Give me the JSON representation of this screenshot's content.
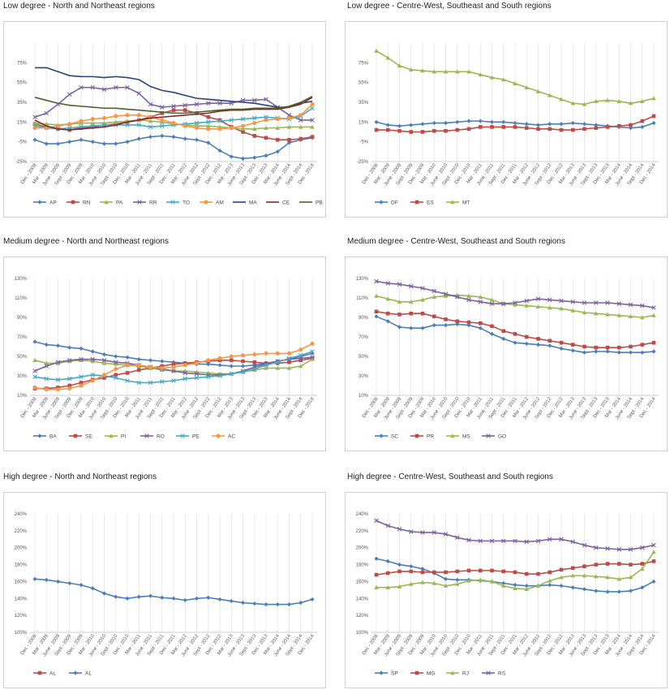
{
  "x_labels": [
    "Dec - 2008",
    "Mar - 2009",
    "June - 2009",
    "Sept - 2009",
    "Dec - 2009",
    "Mar - 2010",
    "June - 2010",
    "Sept - 2010",
    "Dec - 2010",
    "Mar - 2011",
    "June - 2011",
    "Sept - 2011",
    "Dec - 2011",
    "Mar - 2012",
    "June - 2012",
    "Sept - 2012",
    "Dec - 2012",
    "Mar - 2013",
    "June - 2013",
    "Sept - 2013",
    "Dec - 2013",
    "Mar - 2014",
    "June - 2014",
    "Sept - 2014",
    "Dec - 2014"
  ],
  "chart_data": [
    {
      "type": "line",
      "title": "Low degree - North and Northeast regions",
      "ylim": [
        -25,
        95
      ],
      "yticks": [
        "-25%",
        "-5%",
        "15%",
        "35%",
        "55%",
        "75%"
      ],
      "ytick_values": [
        -25,
        -5,
        15,
        35,
        55,
        75
      ],
      "series": [
        {
          "name": "AP",
          "color": "#4a7ebb",
          "marker": "diamond",
          "values": [
            -3,
            -7,
            -7,
            -5,
            -3,
            -5,
            -7,
            -7,
            -5,
            -2,
            0,
            1,
            0,
            -2,
            -3,
            -6,
            -14,
            -20,
            -22,
            -21,
            -19,
            -15,
            -6,
            -3,
            -1
          ]
        },
        {
          "name": "RN",
          "color": "#be4b48",
          "marker": "square",
          "values": [
            13,
            10,
            8,
            7,
            9,
            10,
            12,
            13,
            15,
            17,
            20,
            24,
            27,
            27,
            24,
            20,
            17,
            10,
            5,
            1,
            -1,
            -3,
            -3,
            -2,
            0
          ]
        },
        {
          "name": "PA",
          "color": "#98b954",
          "marker": "triangle",
          "values": [
            14,
            13,
            12,
            13,
            14,
            14,
            14,
            15,
            16,
            17,
            16,
            15,
            13,
            12,
            11,
            11,
            10,
            9,
            8,
            8,
            9,
            9,
            10,
            10,
            10
          ]
        },
        {
          "name": "RR",
          "color": "#7d60a0",
          "marker": "x",
          "values": [
            20,
            24,
            33,
            43,
            50,
            50,
            48,
            50,
            50,
            44,
            33,
            30,
            31,
            32,
            33,
            34,
            34,
            34,
            37,
            37,
            38,
            30,
            22,
            17,
            17
          ]
        },
        {
          "name": "TO",
          "color": "#46aac5",
          "marker": "x",
          "values": [
            11,
            9,
            8,
            9,
            10,
            11,
            12,
            12,
            12,
            12,
            10,
            11,
            12,
            13,
            14,
            15,
            16,
            17,
            18,
            19,
            20,
            19,
            18,
            21,
            29
          ]
        },
        {
          "name": "AM",
          "color": "#f79646",
          "marker": "circle",
          "values": [
            9,
            9,
            11,
            13,
            16,
            18,
            19,
            21,
            22,
            22,
            20,
            17,
            14,
            11,
            9,
            8,
            8,
            9,
            11,
            14,
            17,
            18,
            19,
            22,
            33
          ]
        },
        {
          "name": "MA",
          "color": "#264478",
          "marker": "none",
          "values": [
            70,
            70,
            66,
            62,
            61,
            61,
            60,
            61,
            60,
            58,
            51,
            47,
            45,
            42,
            39,
            38,
            37,
            36,
            35,
            34,
            32,
            30,
            30,
            34,
            36
          ]
        },
        {
          "name": "CE",
          "color": "#7f2a29",
          "marker": "none",
          "values": [
            17,
            11,
            8,
            7,
            8,
            9,
            10,
            12,
            15,
            17,
            19,
            20,
            21,
            22,
            23,
            24,
            26,
            27,
            27,
            28,
            28,
            28,
            30,
            33,
            40
          ]
        },
        {
          "name": "PB",
          "color": "#4f6228",
          "marker": "none",
          "values": [
            40,
            37,
            34,
            32,
            31,
            30,
            29,
            29,
            28,
            27,
            26,
            25,
            24,
            24,
            25,
            26,
            27,
            28,
            28,
            29,
            29,
            29,
            31,
            35,
            41
          ]
        }
      ]
    },
    {
      "type": "line",
      "title": "Low degree - Centre-West, Southeast and South regions",
      "ylim": [
        -25,
        95
      ],
      "yticks": [
        "-25%",
        "-5%",
        "15%",
        "35%",
        "55%",
        "75%"
      ],
      "ytick_values": [
        -25,
        -5,
        15,
        35,
        55,
        75
      ],
      "series": [
        {
          "name": "DF",
          "color": "#4a7ebb",
          "marker": "diamond",
          "values": [
            15,
            12,
            11,
            12,
            13,
            14,
            14,
            15,
            16,
            16,
            15,
            15,
            14,
            13,
            12,
            13,
            13,
            14,
            13,
            12,
            11,
            10,
            9,
            10,
            14
          ]
        },
        {
          "name": "ES",
          "color": "#be4b48",
          "marker": "square",
          "values": [
            7,
            7,
            6,
            5,
            5,
            6,
            6,
            7,
            8,
            10,
            10,
            10,
            10,
            9,
            8,
            8,
            7,
            7,
            8,
            9,
            10,
            11,
            12,
            16,
            21
          ]
        },
        {
          "name": "MT",
          "color": "#98b954",
          "marker": "triangle",
          "values": [
            87,
            80,
            72,
            68,
            67,
            66,
            66,
            66,
            66,
            63,
            60,
            58,
            54,
            50,
            46,
            42,
            38,
            34,
            33,
            36,
            37,
            36,
            34,
            36,
            39
          ]
        }
      ]
    },
    {
      "type": "line",
      "title": "Medium degree - North and Northeast regions",
      "ylim": [
        10,
        130
      ],
      "yticks": [
        "10%",
        "30%",
        "50%",
        "70%",
        "90%",
        "110%",
        "130%"
      ],
      "ytick_values": [
        10,
        30,
        50,
        70,
        90,
        110,
        130
      ],
      "series": [
        {
          "name": "BA",
          "color": "#4a7ebb",
          "marker": "diamond",
          "values": [
            65,
            62,
            61,
            59,
            58,
            55,
            52,
            50,
            49,
            47,
            46,
            45,
            44,
            43,
            42,
            42,
            41,
            40,
            40,
            41,
            43,
            45,
            47,
            50,
            53
          ]
        },
        {
          "name": "SE",
          "color": "#be4b48",
          "marker": "square",
          "values": [
            17,
            17,
            18,
            20,
            23,
            26,
            28,
            31,
            33,
            36,
            38,
            40,
            42,
            43,
            44,
            45,
            46,
            46,
            45,
            44,
            43,
            43,
            44,
            46,
            48
          ]
        },
        {
          "name": "PI",
          "color": "#98b954",
          "marker": "triangle",
          "values": [
            46,
            43,
            43,
            45,
            46,
            45,
            43,
            42,
            41,
            40,
            38,
            36,
            35,
            35,
            34,
            33,
            32,
            32,
            34,
            36,
            38,
            38,
            38,
            40,
            47
          ]
        },
        {
          "name": "RO",
          "color": "#7d60a0",
          "marker": "x",
          "values": [
            35,
            40,
            44,
            46,
            47,
            47,
            46,
            44,
            43,
            41,
            39,
            37,
            35,
            33,
            32,
            31,
            31,
            32,
            35,
            39,
            42,
            45,
            47,
            48,
            49
          ]
        },
        {
          "name": "PE",
          "color": "#46aac5",
          "marker": "x",
          "values": [
            29,
            27,
            26,
            27,
            29,
            31,
            30,
            28,
            25,
            23,
            23,
            24,
            25,
            27,
            28,
            29,
            30,
            32,
            34,
            37,
            41,
            44,
            48,
            51,
            55
          ]
        },
        {
          "name": "AC",
          "color": "#f79646",
          "marker": "circle",
          "values": [
            18,
            16,
            16,
            17,
            20,
            25,
            31,
            37,
            41,
            41,
            39,
            38,
            39,
            41,
            43,
            46,
            48,
            50,
            51,
            52,
            53,
            53,
            53,
            57,
            63
          ]
        }
      ]
    },
    {
      "type": "line",
      "title": "Medium degree - Centre-West, Southeast and South regions",
      "ylim": [
        10,
        130
      ],
      "yticks": [
        "10%",
        "30%",
        "50%",
        "70%",
        "90%",
        "110%",
        "130%"
      ],
      "ytick_values": [
        10,
        30,
        50,
        70,
        90,
        110,
        130
      ],
      "series": [
        {
          "name": "SC",
          "color": "#4a7ebb",
          "marker": "diamond",
          "values": [
            91,
            86,
            80,
            79,
            79,
            82,
            82,
            83,
            82,
            79,
            73,
            68,
            64,
            63,
            62,
            61,
            58,
            56,
            54,
            55,
            55,
            54,
            54,
            54,
            55
          ]
        },
        {
          "name": "PR",
          "color": "#be4b48",
          "marker": "square",
          "values": [
            96,
            94,
            93,
            94,
            94,
            91,
            88,
            86,
            85,
            84,
            81,
            76,
            73,
            70,
            68,
            66,
            64,
            62,
            60,
            59,
            59,
            59,
            60,
            62,
            64
          ]
        },
        {
          "name": "MS",
          "color": "#98b954",
          "marker": "triangle",
          "values": [
            112,
            109,
            106,
            106,
            108,
            111,
            112,
            113,
            112,
            111,
            108,
            104,
            103,
            102,
            101,
            100,
            99,
            97,
            95,
            94,
            93,
            92,
            91,
            90,
            92
          ]
        },
        {
          "name": "GO",
          "color": "#7d60a0",
          "marker": "x",
          "values": [
            127,
            125,
            124,
            122,
            120,
            117,
            114,
            111,
            108,
            106,
            104,
            104,
            105,
            107,
            109,
            108,
            107,
            106,
            105,
            105,
            105,
            104,
            103,
            102,
            100
          ]
        }
      ]
    },
    {
      "type": "line",
      "title": "High degree - North and Northeast regions",
      "ylim": [
        100,
        240
      ],
      "yticks": [
        "100%",
        "120%",
        "140%",
        "160%",
        "180%",
        "200%",
        "220%",
        "240%"
      ],
      "ytick_values": [
        100,
        120,
        140,
        160,
        180,
        200,
        220,
        240
      ],
      "series": [
        {
          "name": "AL",
          "color": "#be4b48",
          "marker": "square",
          "values": []
        },
        {
          "name": "AL",
          "color": "#4a7ebb",
          "marker": "diamond",
          "values": [
            163,
            162,
            160,
            158,
            156,
            152,
            146,
            142,
            140,
            142,
            143,
            141,
            140,
            138,
            140,
            141,
            139,
            137,
            135,
            134,
            133,
            133,
            133,
            135,
            139
          ]
        }
      ]
    },
    {
      "type": "line",
      "title": "High degree - Centre-West, Southeast and South regions",
      "ylim": [
        100,
        240
      ],
      "yticks": [
        "100%",
        "120%",
        "140%",
        "160%",
        "180%",
        "200%",
        "220%",
        "240%"
      ],
      "ytick_values": [
        100,
        120,
        140,
        160,
        180,
        200,
        220,
        240
      ],
      "series": [
        {
          "name": "SP",
          "color": "#4a7ebb",
          "marker": "diamond",
          "values": [
            187,
            184,
            180,
            178,
            175,
            170,
            163,
            162,
            162,
            161,
            160,
            158,
            156,
            155,
            155,
            156,
            155,
            153,
            151,
            149,
            148,
            148,
            149,
            153,
            160
          ]
        },
        {
          "name": "MG",
          "color": "#be4b48",
          "marker": "square",
          "values": [
            168,
            170,
            172,
            172,
            171,
            171,
            171,
            172,
            173,
            173,
            173,
            172,
            171,
            169,
            169,
            171,
            174,
            176,
            178,
            180,
            181,
            181,
            180,
            181,
            184
          ]
        },
        {
          "name": "RJ",
          "color": "#98b954",
          "marker": "triangle",
          "values": [
            153,
            153,
            154,
            157,
            159,
            158,
            155,
            157,
            161,
            162,
            160,
            155,
            152,
            151,
            155,
            161,
            165,
            167,
            167,
            166,
            165,
            163,
            165,
            175,
            195
          ]
        },
        {
          "name": "RS",
          "color": "#7d60a0",
          "marker": "x",
          "values": [
            232,
            226,
            222,
            219,
            218,
            218,
            216,
            212,
            209,
            208,
            208,
            208,
            208,
            207,
            208,
            210,
            210,
            207,
            203,
            200,
            199,
            198,
            198,
            200,
            203
          ]
        }
      ]
    }
  ]
}
